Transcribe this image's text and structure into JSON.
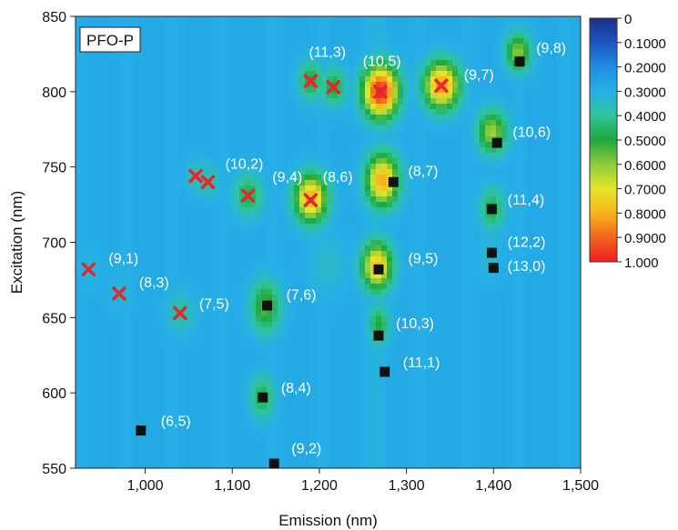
{
  "chart_data": {
    "type": "heatmap",
    "title": "",
    "panel_label": "PFO-P",
    "xlabel": "Emission (nm)",
    "ylabel": "Excitation (nm)",
    "xlim": [
      920,
      1500
    ],
    "ylim": [
      550,
      850
    ],
    "x_ticks": [
      1000,
      1100,
      1200,
      1300,
      1400,
      1500
    ],
    "x_tick_labels": [
      "1,000",
      "1,100",
      "1,200",
      "1,300",
      "1,400",
      "1,500"
    ],
    "y_ticks": [
      550,
      600,
      650,
      700,
      750,
      800,
      850
    ],
    "y_tick_labels": [
      "550",
      "600",
      "650",
      "700",
      "750",
      "800",
      "850"
    ],
    "colorbar": {
      "ticks": [
        0,
        0.1,
        0.2,
        0.3,
        0.4,
        0.5,
        0.6,
        0.7,
        0.8,
        0.9,
        1.0
      ],
      "tick_labels": [
        "0",
        "0.1000",
        "0.2000",
        "0.3000",
        "0.4000",
        "0.5000",
        "0.6000",
        "0.7000",
        "0.8000",
        "0.9000",
        "1.000"
      ],
      "colors": [
        "#1b2f86",
        "#1d55c2",
        "#1f8ee0",
        "#26b0e6",
        "#2fc49a",
        "#1fa83c",
        "#8fcc3a",
        "#e6e62a",
        "#f7b41c",
        "#f0641c",
        "#ee1c22"
      ]
    },
    "background_value": 0.28,
    "colors": {
      "cross": "#e8242c",
      "square": "#111111",
      "label": "#ffffff"
    },
    "peaks": [
      {
        "x": 935,
        "y": 682,
        "intensity": 0.32,
        "sx": 10,
        "sy": 10,
        "label": "(9,1)"
      },
      {
        "x": 970,
        "y": 666,
        "intensity": 0.32,
        "sx": 10,
        "sy": 10,
        "label": "(8,3)"
      },
      {
        "x": 1040,
        "y": 653,
        "intensity": 0.38,
        "sx": 12,
        "sy": 10,
        "label": "(7,5)"
      },
      {
        "x": 1060,
        "y": 744,
        "intensity": 0.38,
        "sx": 10,
        "sy": 8,
        "label": ""
      },
      {
        "x": 1072,
        "y": 740,
        "intensity": 0.38,
        "sx": 10,
        "sy": 8,
        "label": ""
      },
      {
        "x": 1118,
        "y": 731,
        "intensity": 0.48,
        "sx": 12,
        "sy": 10,
        "label": "(10,2)"
      },
      {
        "x": 1138,
        "y": 657,
        "intensity": 0.55,
        "sx": 12,
        "sy": 12,
        "label": "(7,6)"
      },
      {
        "x": 1134,
        "y": 597,
        "intensity": 0.48,
        "sx": 10,
        "sy": 10,
        "label": "(8,4)"
      },
      {
        "x": 1190,
        "y": 729,
        "intensity": 0.82,
        "sx": 13,
        "sy": 11,
        "label": "(8,6)"
      },
      {
        "x": 1190,
        "y": 807,
        "intensity": 0.5,
        "sx": 10,
        "sy": 9,
        "label": ""
      },
      {
        "x": 1216,
        "y": 803,
        "intensity": 0.5,
        "sx": 10,
        "sy": 9,
        "label": "(11,3)"
      },
      {
        "x": 1270,
        "y": 800,
        "intensity": 1.0,
        "sx": 14,
        "sy": 12,
        "label": "(10,5)"
      },
      {
        "x": 1340,
        "y": 804,
        "intensity": 0.85,
        "sx": 14,
        "sy": 11,
        "label": "(9,7)"
      },
      {
        "x": 1272,
        "y": 741,
        "intensity": 0.82,
        "sx": 13,
        "sy": 12,
        "label": "(8,7)"
      },
      {
        "x": 1266,
        "y": 684,
        "intensity": 0.78,
        "sx": 12,
        "sy": 11,
        "label": "(9,5)"
      },
      {
        "x": 1268,
        "y": 645,
        "intensity": 0.5,
        "sx": 8,
        "sy": 9,
        "label": ""
      },
      {
        "x": 1398,
        "y": 773,
        "intensity": 0.62,
        "sx": 12,
        "sy": 10,
        "label": "(10,6)"
      },
      {
        "x": 1428,
        "y": 826,
        "intensity": 0.6,
        "sx": 10,
        "sy": 9,
        "label": "(9,8)"
      },
      {
        "x": 1398,
        "y": 722,
        "intensity": 0.48,
        "sx": 10,
        "sy": 10,
        "label": "(11,4)"
      },
      {
        "x": 1210,
        "y": 685,
        "intensity": 0.34,
        "sx": 16,
        "sy": 14,
        "label": ""
      },
      {
        "x": 1395,
        "y": 690,
        "intensity": 0.34,
        "sx": 10,
        "sy": 10,
        "label": ""
      }
    ],
    "crosses": [
      {
        "x": 935,
        "y": 682
      },
      {
        "x": 970,
        "y": 666
      },
      {
        "x": 1040,
        "y": 653
      },
      {
        "x": 1058,
        "y": 744
      },
      {
        "x": 1072,
        "y": 740
      },
      {
        "x": 1118,
        "y": 731
      },
      {
        "x": 1190,
        "y": 728
      },
      {
        "x": 1190,
        "y": 807
      },
      {
        "x": 1216,
        "y": 803
      },
      {
        "x": 1270,
        "y": 800
      },
      {
        "x": 1340,
        "y": 804
      }
    ],
    "squares": [
      {
        "x": 1430,
        "y": 820
      },
      {
        "x": 1404,
        "y": 766
      },
      {
        "x": 1285,
        "y": 740
      },
      {
        "x": 1398,
        "y": 722
      },
      {
        "x": 1398,
        "y": 693
      },
      {
        "x": 1400,
        "y": 683
      },
      {
        "x": 1268,
        "y": 682
      },
      {
        "x": 1140,
        "y": 658
      },
      {
        "x": 1268,
        "y": 638
      },
      {
        "x": 1275,
        "y": 614
      },
      {
        "x": 1135,
        "y": 597
      },
      {
        "x": 995,
        "y": 575
      },
      {
        "x": 1148,
        "y": 553
      }
    ],
    "labels": [
      {
        "text": "(9,1)",
        "x": 958,
        "y": 686
      },
      {
        "text": "(8,3)",
        "x": 993,
        "y": 670
      },
      {
        "text": "(7,5)",
        "x": 1062,
        "y": 656
      },
      {
        "text": "(10,2)",
        "x": 1092,
        "y": 749
      },
      {
        "text": "(9,4)",
        "x": 1146,
        "y": 740
      },
      {
        "x": 1204,
        "y": 740,
        "text": "(8,6)"
      },
      {
        "text": "(11,3)",
        "x": 1188,
        "y": 823
      },
      {
        "text": "(10,5)",
        "x": 1250,
        "y": 817
      },
      {
        "text": "(9,7)",
        "x": 1366,
        "y": 808
      },
      {
        "text": "(9,8)",
        "x": 1449,
        "y": 826
      },
      {
        "text": "(10,6)",
        "x": 1422,
        "y": 770
      },
      {
        "text": "(8,7)",
        "x": 1302,
        "y": 744
      },
      {
        "text": "(11,4)",
        "x": 1416,
        "y": 725
      },
      {
        "text": "(12,2)",
        "x": 1416,
        "y": 697
      },
      {
        "text": "(13,0)",
        "x": 1416,
        "y": 681
      },
      {
        "text": "(9,5)",
        "x": 1302,
        "y": 686
      },
      {
        "text": "(7,6)",
        "x": 1162,
        "y": 662
      },
      {
        "text": "(10,3)",
        "x": 1288,
        "y": 643
      },
      {
        "text": "(11,1)",
        "x": 1296,
        "y": 617
      },
      {
        "text": "(8,4)",
        "x": 1156,
        "y": 600
      },
      {
        "text": "(6,5)",
        "x": 1018,
        "y": 578
      },
      {
        "text": "(9,2)",
        "x": 1168,
        "y": 560
      }
    ]
  }
}
